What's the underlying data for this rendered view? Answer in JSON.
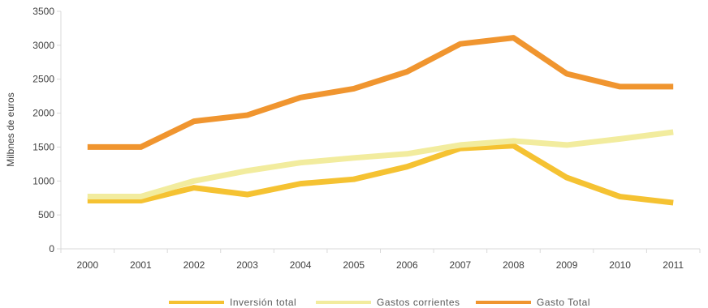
{
  "chart_data": {
    "type": "line",
    "title": "",
    "xlabel": "",
    "ylabel": "Milbnes de euros",
    "categories": [
      "2000",
      "2001",
      "2002",
      "2003",
      "2004",
      "2005",
      "2006",
      "2007",
      "2008",
      "2009",
      "2010",
      "2011"
    ],
    "ylim": [
      0,
      3500
    ],
    "yticks": [
      0,
      500,
      1000,
      1500,
      2000,
      2500,
      3000,
      3500
    ],
    "grid": false,
    "legend_position": "bottom",
    "series": [
      {
        "name": "Inversión total",
        "color": "#F5C232",
        "values": [
          710,
          710,
          900,
          800,
          960,
          1025,
          1210,
          1480,
          1520,
          1050,
          770,
          680
        ]
      },
      {
        "name": "Gastos corrientes",
        "color": "#F2EC9E",
        "values": [
          770,
          770,
          1000,
          1150,
          1270,
          1340,
          1400,
          1530,
          1590,
          1530,
          1620,
          1720
        ]
      },
      {
        "name": "Gasto Total",
        "color": "#F0952F",
        "values": [
          1500,
          1500,
          1880,
          1970,
          2230,
          2360,
          2610,
          3020,
          3110,
          2580,
          2390,
          2390
        ]
      }
    ]
  }
}
